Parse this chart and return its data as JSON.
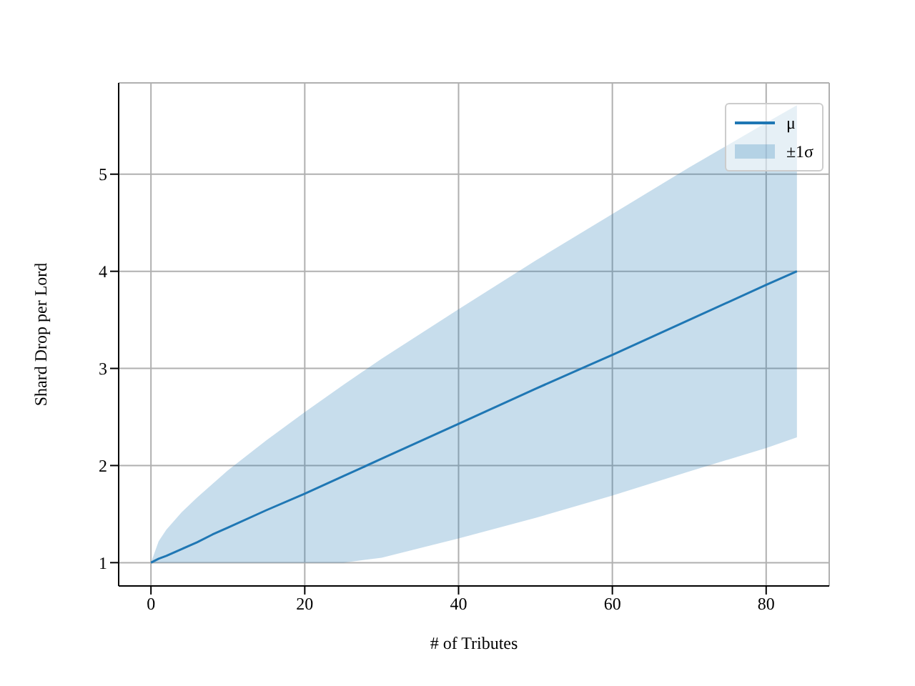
{
  "chart_data": {
    "type": "line",
    "xlabel": "# of Tributes",
    "ylabel": "Shard Drop per Lord",
    "x": [
      0,
      1,
      2,
      4,
      6,
      8,
      10,
      15,
      20,
      25,
      30,
      40,
      50,
      60,
      70,
      80,
      84
    ],
    "series": [
      {
        "name": "μ",
        "color": "#1f77b4",
        "values": [
          1,
          1.04,
          1.07,
          1.14,
          1.21,
          1.29,
          1.36,
          1.54,
          1.71,
          1.89,
          2.07,
          2.43,
          2.79,
          3.14,
          3.5,
          3.86,
          4
        ],
        "lower": [
          1,
          1,
          1,
          1,
          1,
          1,
          1,
          1,
          1,
          1,
          1.05,
          1.25,
          1.46,
          1.69,
          1.94,
          2.18,
          2.29
        ],
        "upper": [
          1,
          1.22,
          1.34,
          1.52,
          1.67,
          1.81,
          1.95,
          2.26,
          2.55,
          2.83,
          3.1,
          3.61,
          4.11,
          4.59,
          5.07,
          5.53,
          5.71
        ]
      }
    ],
    "annotations": [
      "±1σ"
    ],
    "xlim": [
      -4.2,
      88.2
    ],
    "xticks": [
      0,
      20,
      40,
      60,
      80
    ],
    "ylim": [
      0.76,
      5.94
    ],
    "yticks": [
      1,
      2,
      3,
      4,
      5
    ],
    "grid": true,
    "legend": "top right"
  }
}
